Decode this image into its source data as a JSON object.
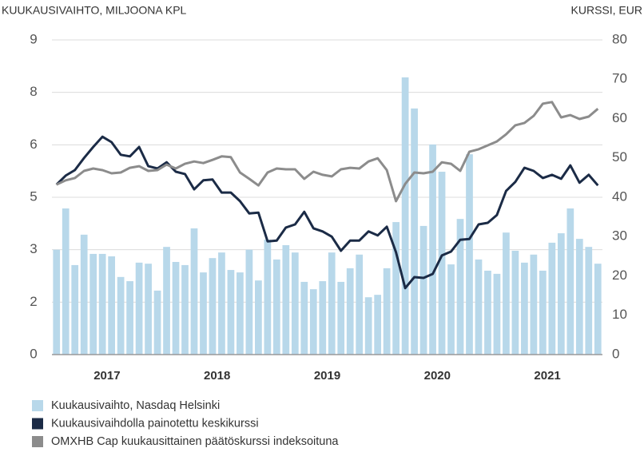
{
  "chart_data": {
    "type": "bar",
    "y_label": "KUUKAUSIVAIHTO, MILJOONA KPL",
    "y2_label": "KURSSI, EUR",
    "categories": [
      null,
      null,
      null,
      null,
      null,
      "2017",
      null,
      null,
      null,
      null,
      null,
      null,
      null,
      null,
      null,
      null,
      null,
      "2018",
      null,
      null,
      null,
      null,
      null,
      null,
      null,
      null,
      null,
      null,
      null,
      "2019",
      null,
      null,
      null,
      null,
      null,
      null,
      null,
      null,
      null,
      null,
      null,
      "2020",
      null,
      null,
      null,
      null,
      null,
      null,
      null,
      null,
      null,
      null,
      null,
      "2021",
      null,
      null,
      null,
      null,
      null,
      null
    ],
    "ylim": [
      0,
      9
    ],
    "yticks": [
      0,
      {
        "value": 1.5,
        "label": "2"
      },
      3,
      {
        "value": 4.5,
        "label": "5"
      },
      6,
      {
        "value": 7.5,
        "label": "8"
      },
      9
    ],
    "y2lim": [
      0,
      80
    ],
    "y2ticks": [
      0,
      10,
      20,
      30,
      40,
      50,
      60,
      70,
      80
    ],
    "grid": true,
    "series": [
      {
        "name": "Kuukausivaihto, Nasdaq Helsinki",
        "type": "bar",
        "color": "#b8d8ea",
        "values": [
          3.0,
          4.18,
          2.56,
          3.43,
          2.88,
          2.88,
          2.81,
          2.22,
          2.1,
          2.63,
          2.6,
          1.83,
          3.08,
          2.65,
          2.56,
          3.61,
          2.35,
          2.76,
          2.92,
          2.42,
          2.35,
          3.0,
          2.12,
          3.29,
          2.72,
          3.13,
          2.92,
          2.08,
          1.87,
          2.1,
          2.92,
          2.08,
          2.47,
          2.86,
          1.64,
          1.71,
          2.47,
          3.79,
          7.93,
          7.04,
          3.68,
          6.01,
          5.23,
          2.58,
          3.88,
          5.73,
          2.72,
          2.4,
          2.31,
          3.49,
          2.97,
          2.63,
          2.86,
          2.4,
          3.2,
          3.47,
          4.18,
          3.31,
          3.08,
          2.6
        ]
      },
      {
        "name": "Kuukausivaihdolla painotettu keskikurssi",
        "type": "line",
        "axis": "y2",
        "color": "#1b2b46",
        "values": [
          43.2,
          45.5,
          46.9,
          50,
          52.8,
          55.4,
          54,
          50.8,
          50.4,
          52.8,
          47.9,
          47.3,
          48.9,
          46.5,
          45.9,
          42,
          44.3,
          44.5,
          41.2,
          41.2,
          39,
          35.9,
          36.1,
          28.8,
          29,
          32.3,
          33.1,
          36.3,
          32.1,
          31.3,
          30,
          26.4,
          29,
          29,
          31.3,
          30.3,
          32.5,
          26,
          16.9,
          19.7,
          19.5,
          20.5,
          25.2,
          26.2,
          29.2,
          29.4,
          33.1,
          33.5,
          35.5,
          41.6,
          43.9,
          47.5,
          46.7,
          44.9,
          45.7,
          44.7,
          48.1,
          43.7,
          45.7,
          43
        ]
      },
      {
        "name": "OMXHB Cap kuukausittainen päätöskurssi indeksoituna",
        "type": "line",
        "axis": "y2",
        "color": "#8c8c8c",
        "values": [
          43.2,
          44.3,
          44.9,
          46.7,
          47.3,
          46.9,
          46.1,
          46.3,
          47.5,
          47.9,
          46.7,
          46.9,
          48.3,
          47.3,
          48.5,
          49.1,
          48.7,
          49.5,
          50.4,
          50.2,
          46.3,
          44.7,
          43,
          46.3,
          47.3,
          47.1,
          47.1,
          44.7,
          46.5,
          45.7,
          45.3,
          47.1,
          47.5,
          47.3,
          49.1,
          49.9,
          46.9,
          39,
          43.4,
          46.3,
          46.1,
          46.5,
          48.9,
          48.5,
          46.7,
          51.6,
          52.2,
          53.2,
          54.2,
          56,
          58.3,
          58.9,
          60.7,
          63.8,
          64.2,
          60.3,
          60.9,
          59.9,
          60.5,
          62.5
        ]
      }
    ]
  }
}
